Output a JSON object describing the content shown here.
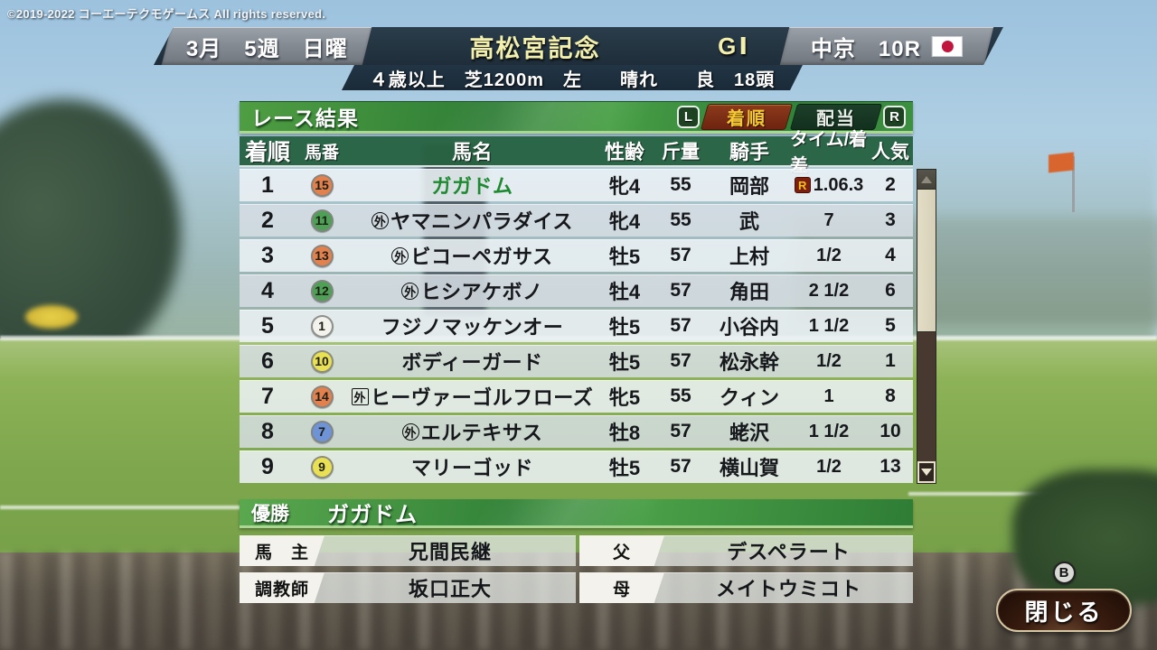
{
  "copyright": "©2019-2022 コーエーテクモゲームス All rights reserved.",
  "header": {
    "date": "3月　5週　日曜",
    "race_name": "高松宮記念",
    "grade": "GⅠ",
    "track_race": "中京　10R",
    "flag": "japan-flag",
    "conditions": "４歳以上　芝1200m　左　　晴れ　　良　18頭"
  },
  "panel": {
    "title": "レース結果",
    "left_bumper": "L",
    "right_bumper": "R",
    "tabs": [
      {
        "label": "着順",
        "active": true
      },
      {
        "label": "配当",
        "active": false
      }
    ]
  },
  "table": {
    "columns": [
      "着順",
      "馬番",
      "馬名",
      "性齢",
      "斤量",
      "騎手",
      "タイム/着差",
      "人気"
    ],
    "record_icon": "R",
    "foreign_marker": "外",
    "rows": [
      {
        "pos": "1",
        "num": "15",
        "waku_color": "#e2814d",
        "marker": "",
        "name": "ガガドム",
        "name_color": "#1d8a30",
        "sex_age": "牝4",
        "weight": "55",
        "jockey": "岡部",
        "time": "1.06.3",
        "record": true,
        "pop": "2"
      },
      {
        "pos": "2",
        "num": "11",
        "waku_color": "#4fa057",
        "marker": "circle",
        "name": "ヤマニンパラダイス",
        "name_color": "",
        "sex_age": "牝4",
        "weight": "55",
        "jockey": "武",
        "time": "7",
        "record": false,
        "pop": "3"
      },
      {
        "pos": "3",
        "num": "13",
        "waku_color": "#e2814d",
        "marker": "circle",
        "name": "ビコーペガサス",
        "name_color": "",
        "sex_age": "牡5",
        "weight": "57",
        "jockey": "上村",
        "time": "1/2",
        "record": false,
        "pop": "4"
      },
      {
        "pos": "4",
        "num": "12",
        "waku_color": "#4fa057",
        "marker": "circle",
        "name": "ヒシアケボノ",
        "name_color": "",
        "sex_age": "牡4",
        "weight": "57",
        "jockey": "角田",
        "time": "2 1/2",
        "record": false,
        "pop": "6"
      },
      {
        "pos": "5",
        "num": "1",
        "waku_color": "#f4f2ec",
        "marker": "",
        "name": "フジノマッケンオー",
        "name_color": "",
        "sex_age": "牡5",
        "weight": "57",
        "jockey": "小谷内",
        "time": "1 1/2",
        "record": false,
        "pop": "5"
      },
      {
        "pos": "6",
        "num": "10",
        "waku_color": "#e9e153",
        "marker": "",
        "name": "ボディーガード",
        "name_color": "",
        "sex_age": "牡5",
        "weight": "57",
        "jockey": "松永幹",
        "time": "1/2",
        "record": false,
        "pop": "1"
      },
      {
        "pos": "7",
        "num": "14",
        "waku_color": "#e2814d",
        "marker": "square",
        "name": "ヒーヴァーゴルフローズ",
        "name_color": "",
        "sex_age": "牝5",
        "weight": "55",
        "jockey": "クィン",
        "time": "1",
        "record": false,
        "pop": "8"
      },
      {
        "pos": "8",
        "num": "7",
        "waku_color": "#6e93d6",
        "marker": "circle",
        "name": "エルテキサス",
        "name_color": "",
        "sex_age": "牡8",
        "weight": "57",
        "jockey": "蛯沢",
        "time": "1 1/2",
        "record": false,
        "pop": "10"
      },
      {
        "pos": "9",
        "num": "9",
        "waku_color": "#e9e153",
        "marker": "",
        "name": "マリーゴッド",
        "name_color": "",
        "sex_age": "牡5",
        "weight": "57",
        "jockey": "横山賀",
        "time": "1/2",
        "record": false,
        "pop": "13"
      }
    ]
  },
  "winner": {
    "label": "優勝",
    "name": "ガガドム"
  },
  "details": [
    {
      "label": "馬　主",
      "value": "兄間民継"
    },
    {
      "label": "父",
      "value": "デスペラート"
    },
    {
      "label": "調教師",
      "value": "坂口正大"
    },
    {
      "label": "母",
      "value": "メイトウミコト"
    }
  ],
  "close": {
    "gamepad_key": "B",
    "label": "閉じる"
  },
  "colors": {
    "grade_text": "#f3efad",
    "winner_name_green": "#1d8a30",
    "tab_active_bg": "#7a2a14",
    "tab_active_text": "#f5c832",
    "record_icon_bg": "#7d1f0e",
    "record_icon_text": "#f2c21a"
  }
}
